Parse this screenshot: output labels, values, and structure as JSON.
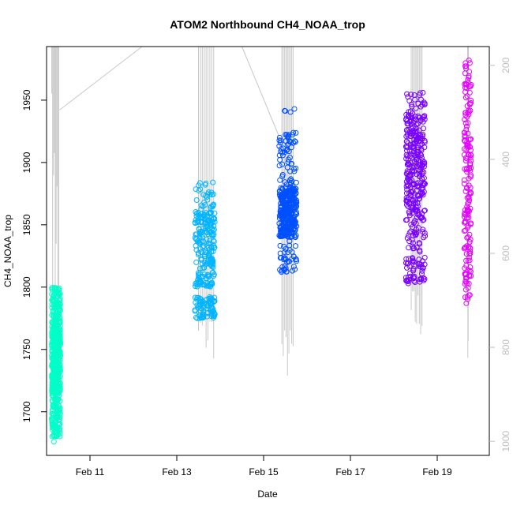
{
  "chart_data": {
    "type": "scatter",
    "title": "ATOM2 Northbound CH4_NOAA_trop",
    "xlabel": "Date",
    "ylabel": "CH4_NOAA_trop",
    "x_unit": "days in February",
    "xlim": [
      10.0,
      20.2
    ],
    "ylim": [
      1665,
      1993
    ],
    "x_ticks": [
      {
        "value": 11,
        "label": "Feb 11"
      },
      {
        "value": 13,
        "label": "Feb 13"
      },
      {
        "value": 15,
        "label": "Feb 15"
      },
      {
        "value": 17,
        "label": "Feb 17"
      },
      {
        "value": 19,
        "label": "Feb 19"
      }
    ],
    "y_ticks": [
      1700,
      1750,
      1800,
      1850,
      1900,
      1950
    ],
    "right_axis": {
      "color": "#bdbdbd",
      "lim": [
        1030,
        160
      ],
      "ticks": [
        200,
        400,
        600,
        800,
        1000
      ]
    },
    "grid": false,
    "legend": "none",
    "series": [
      {
        "color": "#00ffc8",
        "x_range": [
          10.12,
          10.32
        ],
        "y_range": [
          1676,
          1798
        ],
        "bands": [
          [
            1680,
            1800,
            400
          ],
          [
            1715,
            1765,
            200
          ]
        ]
      },
      {
        "color": "#00b4ff",
        "x_range": [
          13.42,
          13.88
        ],
        "y_range": [
          1775,
          1884
        ],
        "bands": [
          [
            1775,
            1792,
            80
          ],
          [
            1800,
            1812,
            50
          ],
          [
            1815,
            1860,
            150
          ],
          [
            1850,
            1884,
            40
          ]
        ]
      },
      {
        "color": "#0050ff",
        "x_range": [
          15.36,
          15.76
        ],
        "y_range": [
          1812,
          1943
        ],
        "bands": [
          [
            1840,
            1880,
            300
          ],
          [
            1812,
            1840,
            40
          ],
          [
            1880,
            1925,
            60
          ],
          [
            1935,
            1943,
            3
          ]
        ]
      },
      {
        "color": "#7800ff",
        "x_range": [
          18.28,
          18.72
        ],
        "y_range": [
          1803,
          1956
        ],
        "bands": [
          [
            1860,
            1940,
            250
          ],
          [
            1803,
            1820,
            40
          ],
          [
            1820,
            1860,
            60
          ],
          [
            1940,
            1956,
            20
          ]
        ]
      },
      {
        "color": "#e600ff",
        "x_range": [
          19.62,
          19.78
        ],
        "y_range": [
          1787,
          1982
        ],
        "bands": [
          [
            1790,
            1980,
            180
          ]
        ]
      }
    ],
    "profile_lines": {
      "color": "#c8c8c8",
      "note": "pressure profile, right axis",
      "vertical_groups": [
        {
          "x_range": [
            10.12,
            10.28
          ],
          "bottom": 160
        },
        {
          "x_range": [
            13.5,
            13.85
          ],
          "bottom": 830
        },
        {
          "x_range": [
            15.42,
            15.68
          ],
          "bottom": 875
        },
        {
          "x_range": [
            18.4,
            18.65
          ],
          "bottom": 790
        },
        {
          "x_range": [
            19.7,
            19.72
          ],
          "bottom": 160
        }
      ],
      "connectors": [
        {
          "from": [
            10.3,
            295
          ],
          "to": [
            12.2,
            160
          ]
        },
        {
          "from": [
            14.5,
            160
          ],
          "to": [
            15.35,
            350
          ]
        }
      ]
    }
  }
}
